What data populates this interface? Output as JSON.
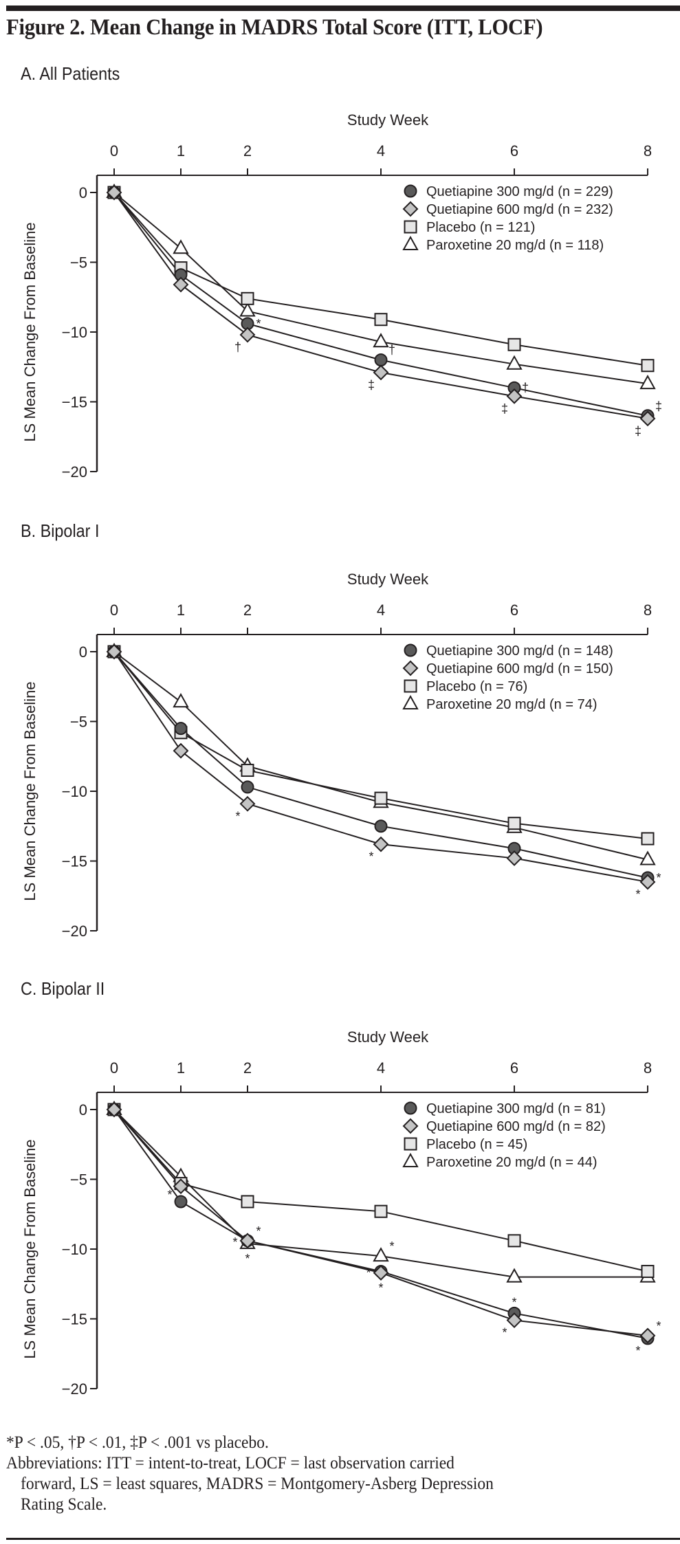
{
  "figure_title": "Figure 2. Mean Change in MADRS Total Score (ITT, LOCF)",
  "footnotes": {
    "significance": "*P < .05, †P < .01, ‡P < .001 vs placebo.",
    "abbrev_line1": "Abbreviations: ITT = intent-to-treat, LOCF = last observation carried",
    "abbrev_line2": "forward, LS = least squares, MADRS = Montgomery-Asberg Depression",
    "abbrev_line3": "Rating Scale."
  },
  "series_styles": {
    "quetiapine_300": {
      "marker": "circle",
      "fill": "#5a5a5a"
    },
    "quetiapine_600": {
      "marker": "diamond",
      "fill": "#c4c4c4"
    },
    "placebo": {
      "marker": "square",
      "fill": "#e6e6e6"
    },
    "paroxetine_20": {
      "marker": "triangle",
      "fill": "#ffffff"
    }
  },
  "chart_data": [
    {
      "type": "line",
      "panel_title": "A. All Patients",
      "xlabel": "Study Week",
      "ylabel": "LS Mean Change From Baseline",
      "x": [
        0,
        1,
        2,
        4,
        6,
        8
      ],
      "x_ticks": [
        "0",
        "1",
        "2",
        "4",
        "6",
        "8"
      ],
      "y_ticks": [
        "0",
        "-5",
        "-10",
        "-15",
        "-20"
      ],
      "ylim": [
        -20,
        0
      ],
      "xlim": [
        0,
        8
      ],
      "grid": false,
      "legend_position": "top-right",
      "series": [
        {
          "key": "quetiapine_300",
          "name": "Quetiapine 300 mg/d (n = 229)",
          "values": [
            0,
            -5.9,
            -9.4,
            -12.0,
            -14.0,
            -16.0
          ],
          "annotations": [
            {
              "week": 2,
              "mark": "*",
              "pos": "right"
            },
            {
              "week": 6,
              "mark": "†",
              "pos": "right"
            },
            {
              "week": 8,
              "mark": "‡",
              "pos": "upper-right"
            }
          ]
        },
        {
          "key": "quetiapine_600",
          "name": "Quetiapine 600 mg/d (n = 232)",
          "values": [
            0,
            -6.6,
            -10.2,
            -12.9,
            -14.6,
            -16.2
          ],
          "annotations": [
            {
              "week": 2,
              "mark": "†",
              "pos": "lower-left"
            },
            {
              "week": 4,
              "mark": "‡",
              "pos": "lower-left"
            },
            {
              "week": 6,
              "mark": "‡",
              "pos": "lower-left"
            },
            {
              "week": 8,
              "mark": "‡",
              "pos": "lower-left"
            }
          ]
        },
        {
          "key": "placebo",
          "name": "Placebo (n = 121)",
          "values": [
            0,
            -5.4,
            -7.6,
            -9.1,
            -10.9,
            -12.4
          ],
          "annotations": []
        },
        {
          "key": "paroxetine_20",
          "name": "Paroxetine 20 mg/d (n = 118)",
          "values": [
            0,
            -4.0,
            -8.5,
            -10.7,
            -12.3,
            -13.7
          ],
          "annotations": [
            {
              "week": 4,
              "mark": "†",
              "pos": "lower-right"
            }
          ]
        }
      ]
    },
    {
      "type": "line",
      "panel_title": "B. Bipolar I",
      "xlabel": "Study Week",
      "ylabel": "LS Mean Change From Baseline",
      "x": [
        0,
        1,
        2,
        4,
        6,
        8
      ],
      "x_ticks": [
        "0",
        "1",
        "2",
        "4",
        "6",
        "8"
      ],
      "y_ticks": [
        "0",
        "-5",
        "-10",
        "-15",
        "-20"
      ],
      "ylim": [
        -20,
        0
      ],
      "xlim": [
        0,
        8
      ],
      "grid": false,
      "legend_position": "top-right",
      "series": [
        {
          "key": "quetiapine_300",
          "name": "Quetiapine 300 mg/d (n = 148)",
          "values": [
            0,
            -5.5,
            -9.7,
            -12.5,
            -14.1,
            -16.2
          ],
          "annotations": [
            {
              "week": 8,
              "mark": "*",
              "pos": "right"
            }
          ]
        },
        {
          "key": "quetiapine_600",
          "name": "Quetiapine 600 mg/d (n = 150)",
          "values": [
            0,
            -7.1,
            -10.9,
            -13.8,
            -14.8,
            -16.5
          ],
          "annotations": [
            {
              "week": 2,
              "mark": "*",
              "pos": "lower-left"
            },
            {
              "week": 4,
              "mark": "*",
              "pos": "lower-left"
            },
            {
              "week": 8,
              "mark": "*",
              "pos": "lower-left"
            }
          ]
        },
        {
          "key": "placebo",
          "name": "Placebo (n = 76)",
          "values": [
            0,
            -5.8,
            -8.5,
            -10.5,
            -12.3,
            -13.4
          ],
          "annotations": []
        },
        {
          "key": "paroxetine_20",
          "name": "Paroxetine 20 mg/d (n = 74)",
          "values": [
            0,
            -3.6,
            -8.2,
            -10.8,
            -12.6,
            -14.9
          ],
          "annotations": []
        }
      ]
    },
    {
      "type": "line",
      "panel_title": "C. Bipolar II",
      "xlabel": "Study Week",
      "ylabel": "LS Mean Change From Baseline",
      "x": [
        0,
        1,
        2,
        4,
        6,
        8
      ],
      "x_ticks": [
        "0",
        "1",
        "2",
        "4",
        "6",
        "8"
      ],
      "y_ticks": [
        "0",
        "-5",
        "-10",
        "-15",
        "-20"
      ],
      "ylim": [
        -20,
        0
      ],
      "xlim": [
        0,
        8
      ],
      "grid": false,
      "legend_position": "top-right",
      "series": [
        {
          "key": "quetiapine_300",
          "name": "Quetiapine 300 mg/d (n = 81)",
          "values": [
            0,
            -6.6,
            -9.4,
            -11.6,
            -14.6,
            -16.4
          ],
          "annotations": [
            {
              "week": 1,
              "mark": "*",
              "pos": "upper-left"
            },
            {
              "week": 2,
              "mark": "*",
              "pos": "upper-right"
            },
            {
              "week": 4,
              "mark": "*",
              "pos": "left"
            },
            {
              "week": 6,
              "mark": "*",
              "pos": "above"
            },
            {
              "week": 8,
              "mark": "*",
              "pos": "lower-left"
            }
          ]
        },
        {
          "key": "quetiapine_600",
          "name": "Quetiapine 600 mg/d (n = 82)",
          "values": [
            0,
            -5.5,
            -9.4,
            -11.7,
            -15.1,
            -16.2
          ],
          "annotations": [
            {
              "week": 2,
              "mark": "*",
              "pos": "left"
            },
            {
              "week": 4,
              "mark": "*",
              "pos": "below"
            },
            {
              "week": 6,
              "mark": "*",
              "pos": "lower-left"
            },
            {
              "week": 8,
              "mark": "*",
              "pos": "upper-right"
            }
          ]
        },
        {
          "key": "placebo",
          "name": "Placebo (n = 45)",
          "values": [
            0,
            -5.3,
            -6.6,
            -7.3,
            -9.4,
            -11.6
          ],
          "annotations": []
        },
        {
          "key": "paroxetine_20",
          "name": "Paroxetine 20 mg/d (n = 44)",
          "values": [
            0,
            -4.8,
            -9.6,
            -10.5,
            -12.0,
            -12.0
          ],
          "annotations": [
            {
              "week": 2,
              "mark": "*",
              "pos": "below"
            },
            {
              "week": 4,
              "mark": "*",
              "pos": "upper-right"
            }
          ]
        }
      ]
    }
  ]
}
